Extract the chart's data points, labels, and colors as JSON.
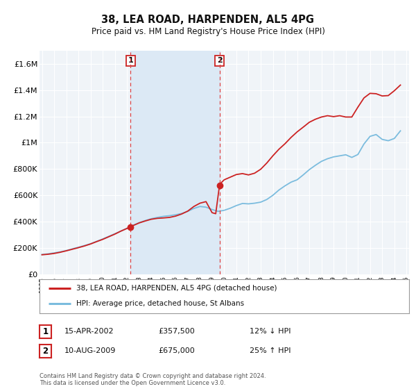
{
  "title": "38, LEA ROAD, HARPENDEN, AL5 4PG",
  "subtitle": "Price paid vs. HM Land Registry's House Price Index (HPI)",
  "legend_line1": "38, LEA ROAD, HARPENDEN, AL5 4PG (detached house)",
  "legend_line2": "HPI: Average price, detached house, St Albans",
  "footnote1": "Contains HM Land Registry data © Crown copyright and database right 2024.",
  "footnote2": "This data is licensed under the Open Government Licence v3.0.",
  "sale1_date": "15-APR-2002",
  "sale1_price": "£357,500",
  "sale1_hpi": "12% ↓ HPI",
  "sale2_date": "10-AUG-2009",
  "sale2_price": "£675,000",
  "sale2_hpi": "25% ↑ HPI",
  "sale1_x": 2002.29,
  "sale1_y": 357500,
  "sale2_x": 2009.61,
  "sale2_y": 675000,
  "vline1_x": 2002.29,
  "vline2_x": 2009.61,
  "shade_x1": 2002.29,
  "shade_x2": 2009.61,
  "hpi_color": "#7bbcde",
  "price_color": "#cc2222",
  "dot_color": "#cc2222",
  "vline_color": "#dd4444",
  "background_color": "#ffffff",
  "plot_bg_color": "#f0f4f8",
  "shade_color": "#dce9f5",
  "grid_color": "#ffffff",
  "border_color": "#bbbbbb",
  "ylim_min": 0,
  "ylim_max": 1700000,
  "xlim_min": 1994.8,
  "xlim_max": 2025.2,
  "yticks": [
    0,
    200000,
    400000,
    600000,
    800000,
    1000000,
    1200000,
    1400000,
    1600000
  ],
  "ytick_labels": [
    "£0",
    "£200K",
    "£400K",
    "£600K",
    "£800K",
    "£1M",
    "£1.2M",
    "£1.4M",
    "£1.6M"
  ],
  "hpi_data_x": [
    1995.0,
    1995.5,
    1996.0,
    1996.5,
    1997.0,
    1997.5,
    1998.0,
    1998.5,
    1999.0,
    1999.5,
    2000.0,
    2000.5,
    2001.0,
    2001.5,
    2002.0,
    2002.5,
    2003.0,
    2003.5,
    2004.0,
    2004.5,
    2005.0,
    2005.5,
    2006.0,
    2006.5,
    2007.0,
    2007.5,
    2008.0,
    2008.5,
    2009.0,
    2009.5,
    2010.0,
    2010.5,
    2011.0,
    2011.5,
    2012.0,
    2012.5,
    2013.0,
    2013.5,
    2014.0,
    2014.5,
    2015.0,
    2015.5,
    2016.0,
    2016.5,
    2017.0,
    2017.5,
    2018.0,
    2018.5,
    2019.0,
    2019.5,
    2020.0,
    2020.5,
    2021.0,
    2021.5,
    2022.0,
    2022.5,
    2023.0,
    2023.5,
    2024.0,
    2024.5
  ],
  "hpi_data_y": [
    150000,
    155000,
    162000,
    170000,
    180000,
    193000,
    205000,
    218000,
    232000,
    250000,
    268000,
    288000,
    308000,
    328000,
    350000,
    372000,
    392000,
    408000,
    422000,
    432000,
    440000,
    445000,
    452000,
    462000,
    478000,
    500000,
    515000,
    510000,
    492000,
    478000,
    486000,
    502000,
    522000,
    538000,
    535000,
    540000,
    548000,
    568000,
    600000,
    640000,
    672000,
    700000,
    718000,
    755000,
    795000,
    828000,
    858000,
    878000,
    892000,
    900000,
    908000,
    888000,
    910000,
    990000,
    1048000,
    1062000,
    1025000,
    1015000,
    1032000,
    1090000
  ],
  "price_data_x": [
    1995.0,
    1995.5,
    1996.0,
    1996.5,
    1997.0,
    1997.5,
    1998.0,
    1998.5,
    1999.0,
    1999.5,
    2000.0,
    2000.5,
    2001.0,
    2001.5,
    2002.0,
    2002.29,
    2002.5,
    2003.0,
    2003.5,
    2004.0,
    2004.5,
    2005.0,
    2005.5,
    2006.0,
    2006.5,
    2007.0,
    2007.5,
    2008.0,
    2008.5,
    2009.0,
    2009.3,
    2009.61,
    2009.8,
    2010.0,
    2010.5,
    2011.0,
    2011.5,
    2012.0,
    2012.5,
    2013.0,
    2013.5,
    2014.0,
    2014.5,
    2015.0,
    2015.5,
    2016.0,
    2016.5,
    2017.0,
    2017.5,
    2018.0,
    2018.5,
    2019.0,
    2019.5,
    2020.0,
    2020.5,
    2021.0,
    2021.5,
    2022.0,
    2022.5,
    2023.0,
    2023.5,
    2024.0,
    2024.5
  ],
  "price_data_y": [
    148000,
    152000,
    158000,
    167000,
    178000,
    190000,
    202000,
    215000,
    230000,
    248000,
    265000,
    285000,
    305000,
    328000,
    348000,
    357500,
    370000,
    390000,
    405000,
    418000,
    425000,
    428000,
    432000,
    442000,
    458000,
    480000,
    515000,
    540000,
    552000,
    468000,
    460000,
    675000,
    700000,
    718000,
    738000,
    758000,
    765000,
    755000,
    768000,
    798000,
    845000,
    900000,
    950000,
    992000,
    1040000,
    1082000,
    1118000,
    1155000,
    1178000,
    1195000,
    1205000,
    1198000,
    1205000,
    1195000,
    1195000,
    1270000,
    1340000,
    1375000,
    1372000,
    1355000,
    1358000,
    1395000,
    1438000
  ]
}
